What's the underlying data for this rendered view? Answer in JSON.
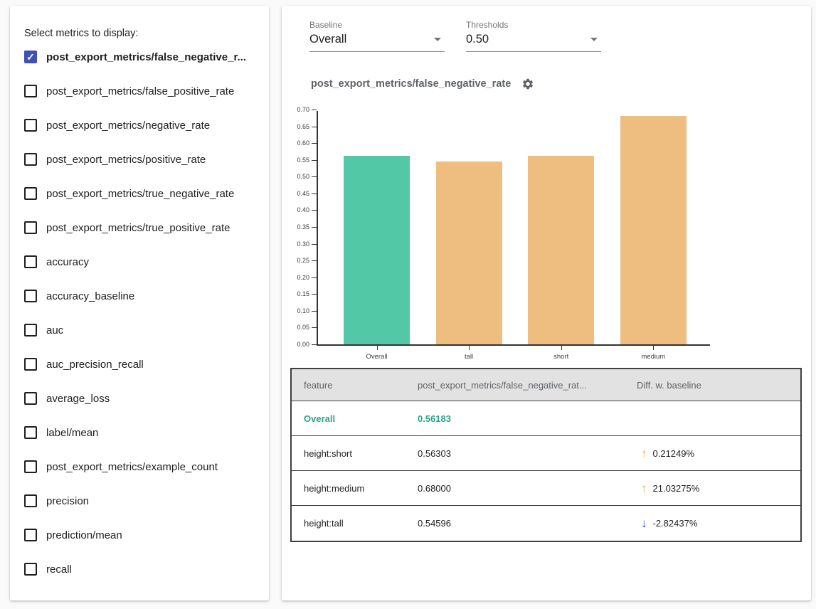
{
  "sidebar": {
    "title": "Select metrics to display:",
    "metrics": [
      {
        "label": "post_export_metrics/false_negative_r...",
        "checked": true
      },
      {
        "label": "post_export_metrics/false_positive_rate",
        "checked": false
      },
      {
        "label": "post_export_metrics/negative_rate",
        "checked": false
      },
      {
        "label": "post_export_metrics/positive_rate",
        "checked": false
      },
      {
        "label": "post_export_metrics/true_negative_rate",
        "checked": false
      },
      {
        "label": "post_export_metrics/true_positive_rate",
        "checked": false
      },
      {
        "label": "accuracy",
        "checked": false
      },
      {
        "label": "accuracy_baseline",
        "checked": false
      },
      {
        "label": "auc",
        "checked": false
      },
      {
        "label": "auc_precision_recall",
        "checked": false
      },
      {
        "label": "average_loss",
        "checked": false
      },
      {
        "label": "label/mean",
        "checked": false
      },
      {
        "label": "post_export_metrics/example_count",
        "checked": false
      },
      {
        "label": "precision",
        "checked": false
      },
      {
        "label": "prediction/mean",
        "checked": false
      },
      {
        "label": "recall",
        "checked": false
      }
    ]
  },
  "controls": {
    "baseline": {
      "label": "Baseline",
      "value": "Overall"
    },
    "thresholds": {
      "label": "Thresholds",
      "value": "0.50"
    }
  },
  "chart": {
    "title": "post_export_metrics/false_negative_rate"
  },
  "chart_data": {
    "type": "bar",
    "categories": [
      "Overall",
      "tall",
      "short",
      "medium"
    ],
    "values": [
      0.56183,
      0.54596,
      0.56303,
      0.68
    ],
    "title": "post_export_metrics/false_negative_rate",
    "xlabel": "",
    "ylabel": "",
    "ylim": [
      0,
      0.7
    ],
    "ytick_step": 0.05,
    "ytick_format": "0.00",
    "grid": false,
    "legend": null,
    "bar_colors": [
      "#52c8a6",
      "#eebd80",
      "#eebd80",
      "#eebd80"
    ]
  },
  "table": {
    "headers": [
      "feature",
      "post_export_metrics/false_negative_rat...",
      "Diff. w. baseline"
    ],
    "rows": [
      {
        "feature": "Overall",
        "value": "0.56183",
        "diff": "",
        "direction": "none",
        "highlight": true
      },
      {
        "feature": "height:short",
        "value": "0.56303",
        "diff": "0.21249%",
        "direction": "up",
        "highlight": false
      },
      {
        "feature": "height:medium",
        "value": "0.68000",
        "diff": "21.03275%",
        "direction": "up",
        "highlight": false
      },
      {
        "feature": "height:tall",
        "value": "0.54596",
        "diff": "-2.82437%",
        "direction": "down",
        "highlight": false
      }
    ]
  },
  "icons": {
    "check": "✓",
    "up_arrow": "↑",
    "down_arrow": "↓"
  },
  "colors": {
    "baseline_bar": "#52c8a6",
    "slice_bar": "#eebd80",
    "checkbox_checked": "#3f51b5",
    "highlight_text": "#2fa287",
    "up_arrow": "#f5a32c",
    "down_arrow": "#2d3be0"
  }
}
